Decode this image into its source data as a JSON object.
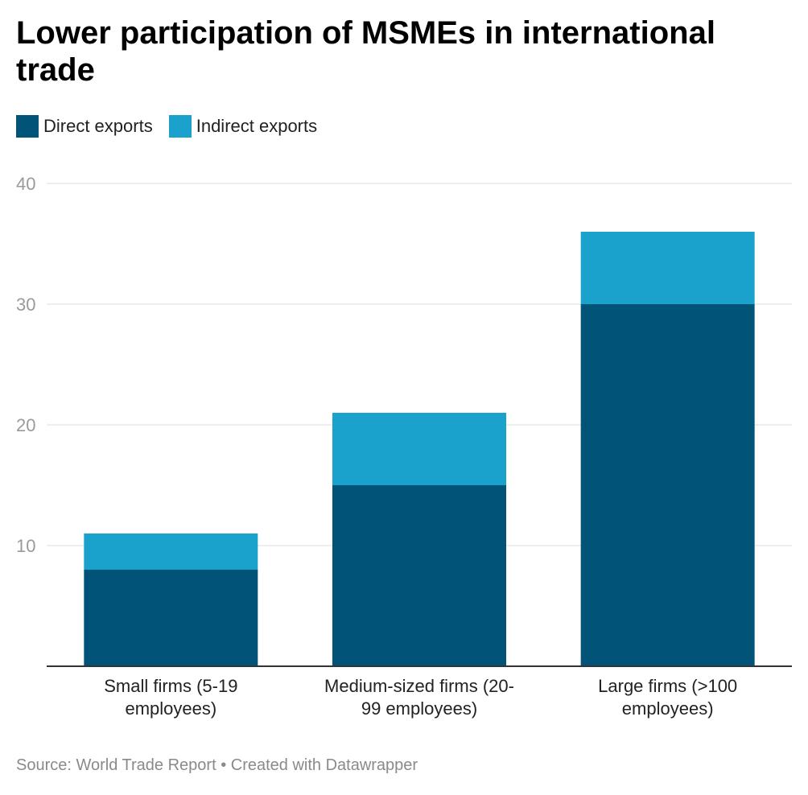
{
  "title": "Lower participation of MSMEs in international trade",
  "source": "Source: World Trade Report • Created with Datawrapper",
  "colors": {
    "direct": "#015378",
    "indirect": "#1ba2cc",
    "grid": "#dddddd",
    "baseline": "#333333"
  },
  "chart_data": {
    "type": "bar",
    "stacked": true,
    "title": "Lower participation of MSMEs in international trade",
    "categories": [
      [
        "Small firms (5-19",
        "employees)"
      ],
      [
        "Medium-sized firms (20-",
        "99 employees)"
      ],
      [
        "Large firms (>100",
        "employees)"
      ]
    ],
    "series": [
      {
        "name": "Direct exports",
        "values": [
          8,
          15,
          30
        ],
        "color": "#015378"
      },
      {
        "name": "Indirect exports",
        "values": [
          3,
          6,
          6
        ],
        "color": "#1ba2cc"
      }
    ],
    "ylim": [
      0,
      40
    ],
    "yticks": [
      10,
      20,
      30,
      40
    ],
    "grid": true,
    "legend_position": "top-left"
  }
}
